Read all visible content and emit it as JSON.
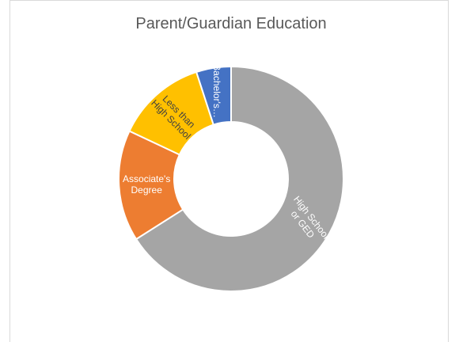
{
  "chart_data": {
    "type": "donut",
    "title": "Parent/Guardian Education",
    "categories": [
      "High School or GED",
      "Associate's Degree",
      "Less than High School",
      "Bachelor's…"
    ],
    "values": [
      66,
      16,
      13,
      5
    ],
    "colors": [
      "#a5a5a5",
      "#ed7d31",
      "#ffc000",
      "#4472c4"
    ],
    "label_colors": [
      "#ffffff",
      "#ffffff",
      "#404040",
      "#ffffff"
    ]
  }
}
